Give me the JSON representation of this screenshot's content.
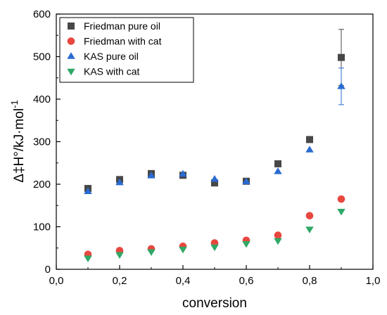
{
  "chart_data": {
    "type": "scatter",
    "xlabel": "conversion",
    "ylabel": "Δ‡H°/kJ·mol-1",
    "xlim": [
      0.0,
      1.0
    ],
    "ylim": [
      0,
      600
    ],
    "x_ticks": [
      "0,0",
      "0,2",
      "0,4",
      "0,6",
      "0,8",
      "1,0"
    ],
    "y_ticks": [
      "0",
      "100",
      "200",
      "300",
      "400",
      "500",
      "600"
    ],
    "x": [
      0.1,
      0.2,
      0.3,
      0.4,
      0.5,
      0.6,
      0.7,
      0.8,
      0.9
    ],
    "legend_position": "top-left",
    "grid": false,
    "series": [
      {
        "name": "Friedman pure oil",
        "marker": "square",
        "color": "#474747",
        "values": [
          190,
          211,
          225,
          221,
          203,
          207,
          248,
          305,
          498
        ],
        "error": [
          null,
          null,
          null,
          null,
          null,
          null,
          null,
          null,
          66
        ]
      },
      {
        "name": "Friedman with cat",
        "marker": "circle",
        "color": "#e8473f",
        "values": [
          35,
          44,
          48,
          54,
          62,
          68,
          80,
          126,
          165
        ],
        "error": [
          null,
          null,
          null,
          null,
          null,
          null,
          null,
          null,
          null
        ]
      },
      {
        "name": "KAS pure oil",
        "marker": "triangle-up",
        "color": "#2a6bd1",
        "values": [
          183,
          204,
          220,
          224,
          212,
          206,
          230,
          281,
          430
        ],
        "error": [
          null,
          null,
          null,
          null,
          null,
          null,
          null,
          null,
          43
        ]
      },
      {
        "name": "KAS with cat",
        "marker": "triangle-down",
        "color": "#2fa866",
        "values": [
          26,
          34,
          41,
          47,
          52,
          60,
          67,
          94,
          136
        ],
        "error": [
          null,
          null,
          null,
          null,
          null,
          null,
          null,
          null,
          null
        ]
      }
    ]
  }
}
